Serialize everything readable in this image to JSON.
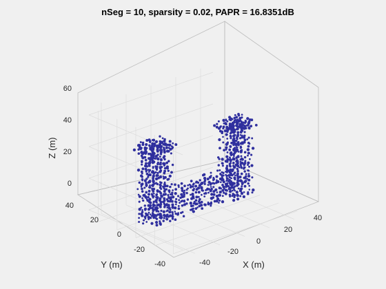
{
  "chart_data": {
    "type": "scatter3d",
    "title": "nSeg = 10, sparsity = 0.02, PAPR = 16.8351dB",
    "xlabel": "X (m)",
    "ylabel": "Y (m)",
    "zlabel": "Z (m)",
    "xlim": [
      -50,
      50
    ],
    "ylim": [
      -50,
      50
    ],
    "zlim": [
      -5,
      65
    ],
    "xticks": [
      "-40",
      "-20",
      "0",
      "20",
      "40"
    ],
    "yticks": [
      "40",
      "20",
      "0",
      "-20",
      "-40"
    ],
    "zticks": [
      "0",
      "20",
      "40",
      "60"
    ],
    "view": "3D isometric, azimuth -37.5°, elevation 30°",
    "grid": true,
    "marker_color": "#2f2f9e",
    "point_cloud": {
      "description_source": "point cloud of a building-like structure: two towers connected by a low wall",
      "left_tower": {
        "x_range": [
          -40,
          -25
        ],
        "y_range": [
          -5,
          10
        ],
        "z_range": [
          0,
          48
        ]
      },
      "right_tower": {
        "x_range": [
          25,
          40
        ],
        "y_range": [
          -5,
          10
        ],
        "z_range": [
          0,
          45
        ]
      },
      "connecting_wall": {
        "x_range": [
          -25,
          25
        ],
        "y_range": [
          -3,
          3
        ],
        "z_range": [
          0,
          18
        ]
      }
    }
  }
}
